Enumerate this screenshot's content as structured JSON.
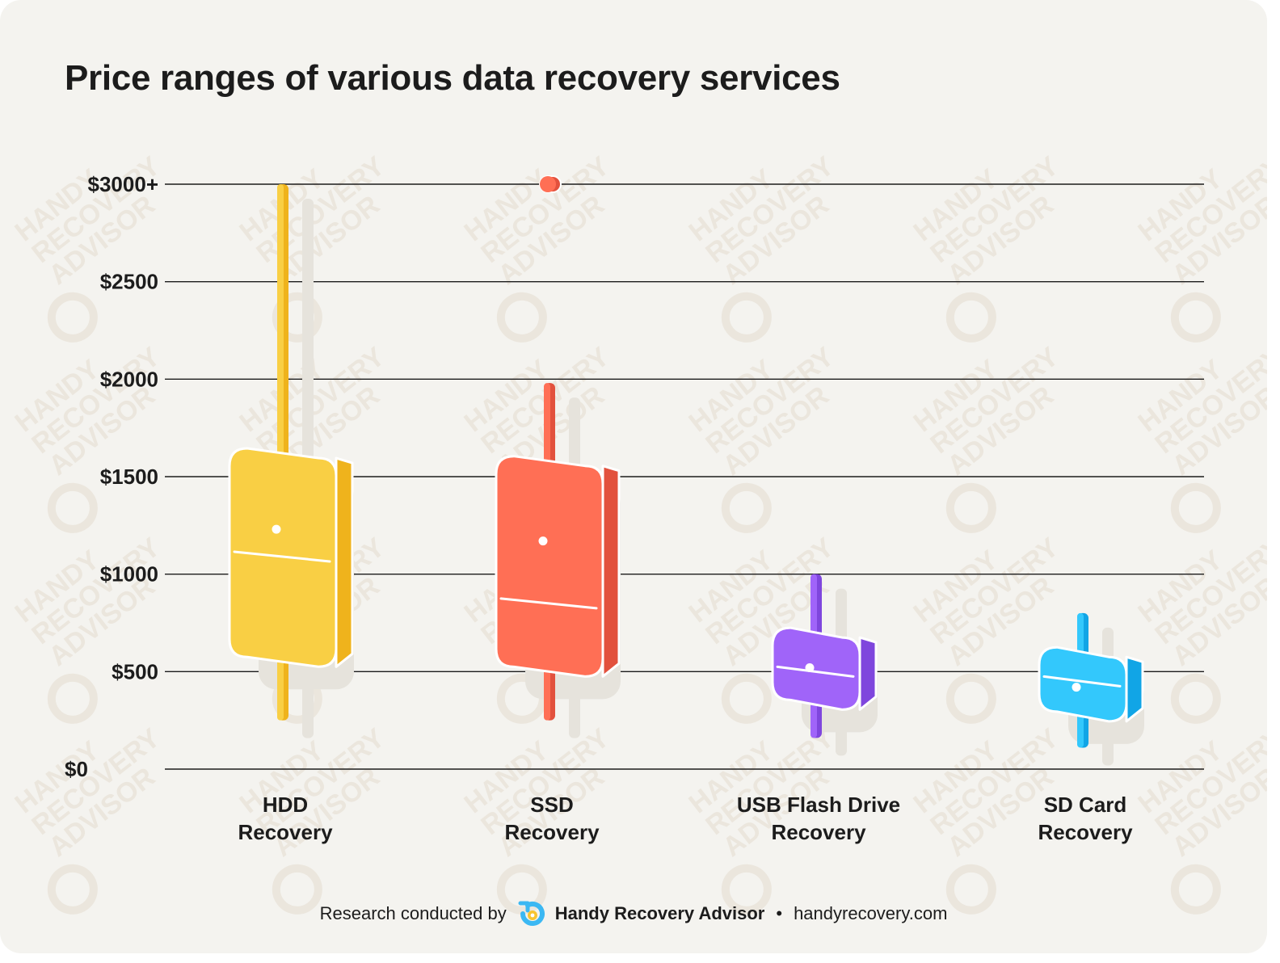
{
  "title": "Price ranges of various data recovery services",
  "footer": {
    "prefix": "Research conducted by",
    "brand": "Handy Recovery Advisor",
    "separator": "•",
    "site": "handyrecovery.com",
    "logo_icon": "handy-recovery-logo",
    "logo_colors": [
      "#3bb8f3",
      "#f7c531"
    ]
  },
  "watermark_text": [
    "HANDY",
    "RECOVERY",
    "ADVISOR"
  ],
  "chart_data": {
    "type": "boxplot",
    "title": "Price ranges of various data recovery services",
    "xlabel": "",
    "ylabel": "",
    "ylim": [
      0,
      3000
    ],
    "yticks": [
      {
        "value": 0,
        "label": "$0"
      },
      {
        "value": 500,
        "label": "$500"
      },
      {
        "value": 1000,
        "label": "$1000"
      },
      {
        "value": 1500,
        "label": "$1500"
      },
      {
        "value": 2000,
        "label": "$2000"
      },
      {
        "value": 2500,
        "label": "$2500"
      },
      {
        "value": 3000,
        "label": "$3000+"
      }
    ],
    "grid": true,
    "categories": [
      {
        "label": [
          "HDD",
          "Recovery"
        ],
        "min": 250,
        "q1": 550,
        "median": 1090,
        "q3": 1620,
        "max": 3000,
        "mean": 1230,
        "outliers": [],
        "colors": {
          "front": "#f9cf44",
          "side": "#efb31c",
          "top": "#f1c02a"
        }
      },
      {
        "label": [
          "SSD",
          "Recovery"
        ],
        "min": 250,
        "q1": 500,
        "median": 850,
        "q3": 1580,
        "max": 1980,
        "mean": 1170,
        "outliers": [
          3000
        ],
        "colors": {
          "front": "#ff6f55",
          "side": "#e2513d",
          "top": "#f05f48"
        }
      },
      {
        "label": [
          "USB Flash Drive",
          "Recovery"
        ],
        "min": 160,
        "q1": 330,
        "median": 500,
        "q3": 700,
        "max": 1000,
        "mean": 520,
        "outliers": [],
        "colors": {
          "front": "#a064f9",
          "side": "#7f46dd",
          "top": "#8f55ec"
        }
      },
      {
        "label": [
          "SD Card",
          "Recovery"
        ],
        "min": 110,
        "q1": 270,
        "median": 450,
        "q3": 600,
        "max": 800,
        "mean": 420,
        "outliers": [],
        "colors": {
          "front": "#33c8fc",
          "side": "#11a5e6",
          "top": "#1fb4f0"
        }
      }
    ]
  }
}
